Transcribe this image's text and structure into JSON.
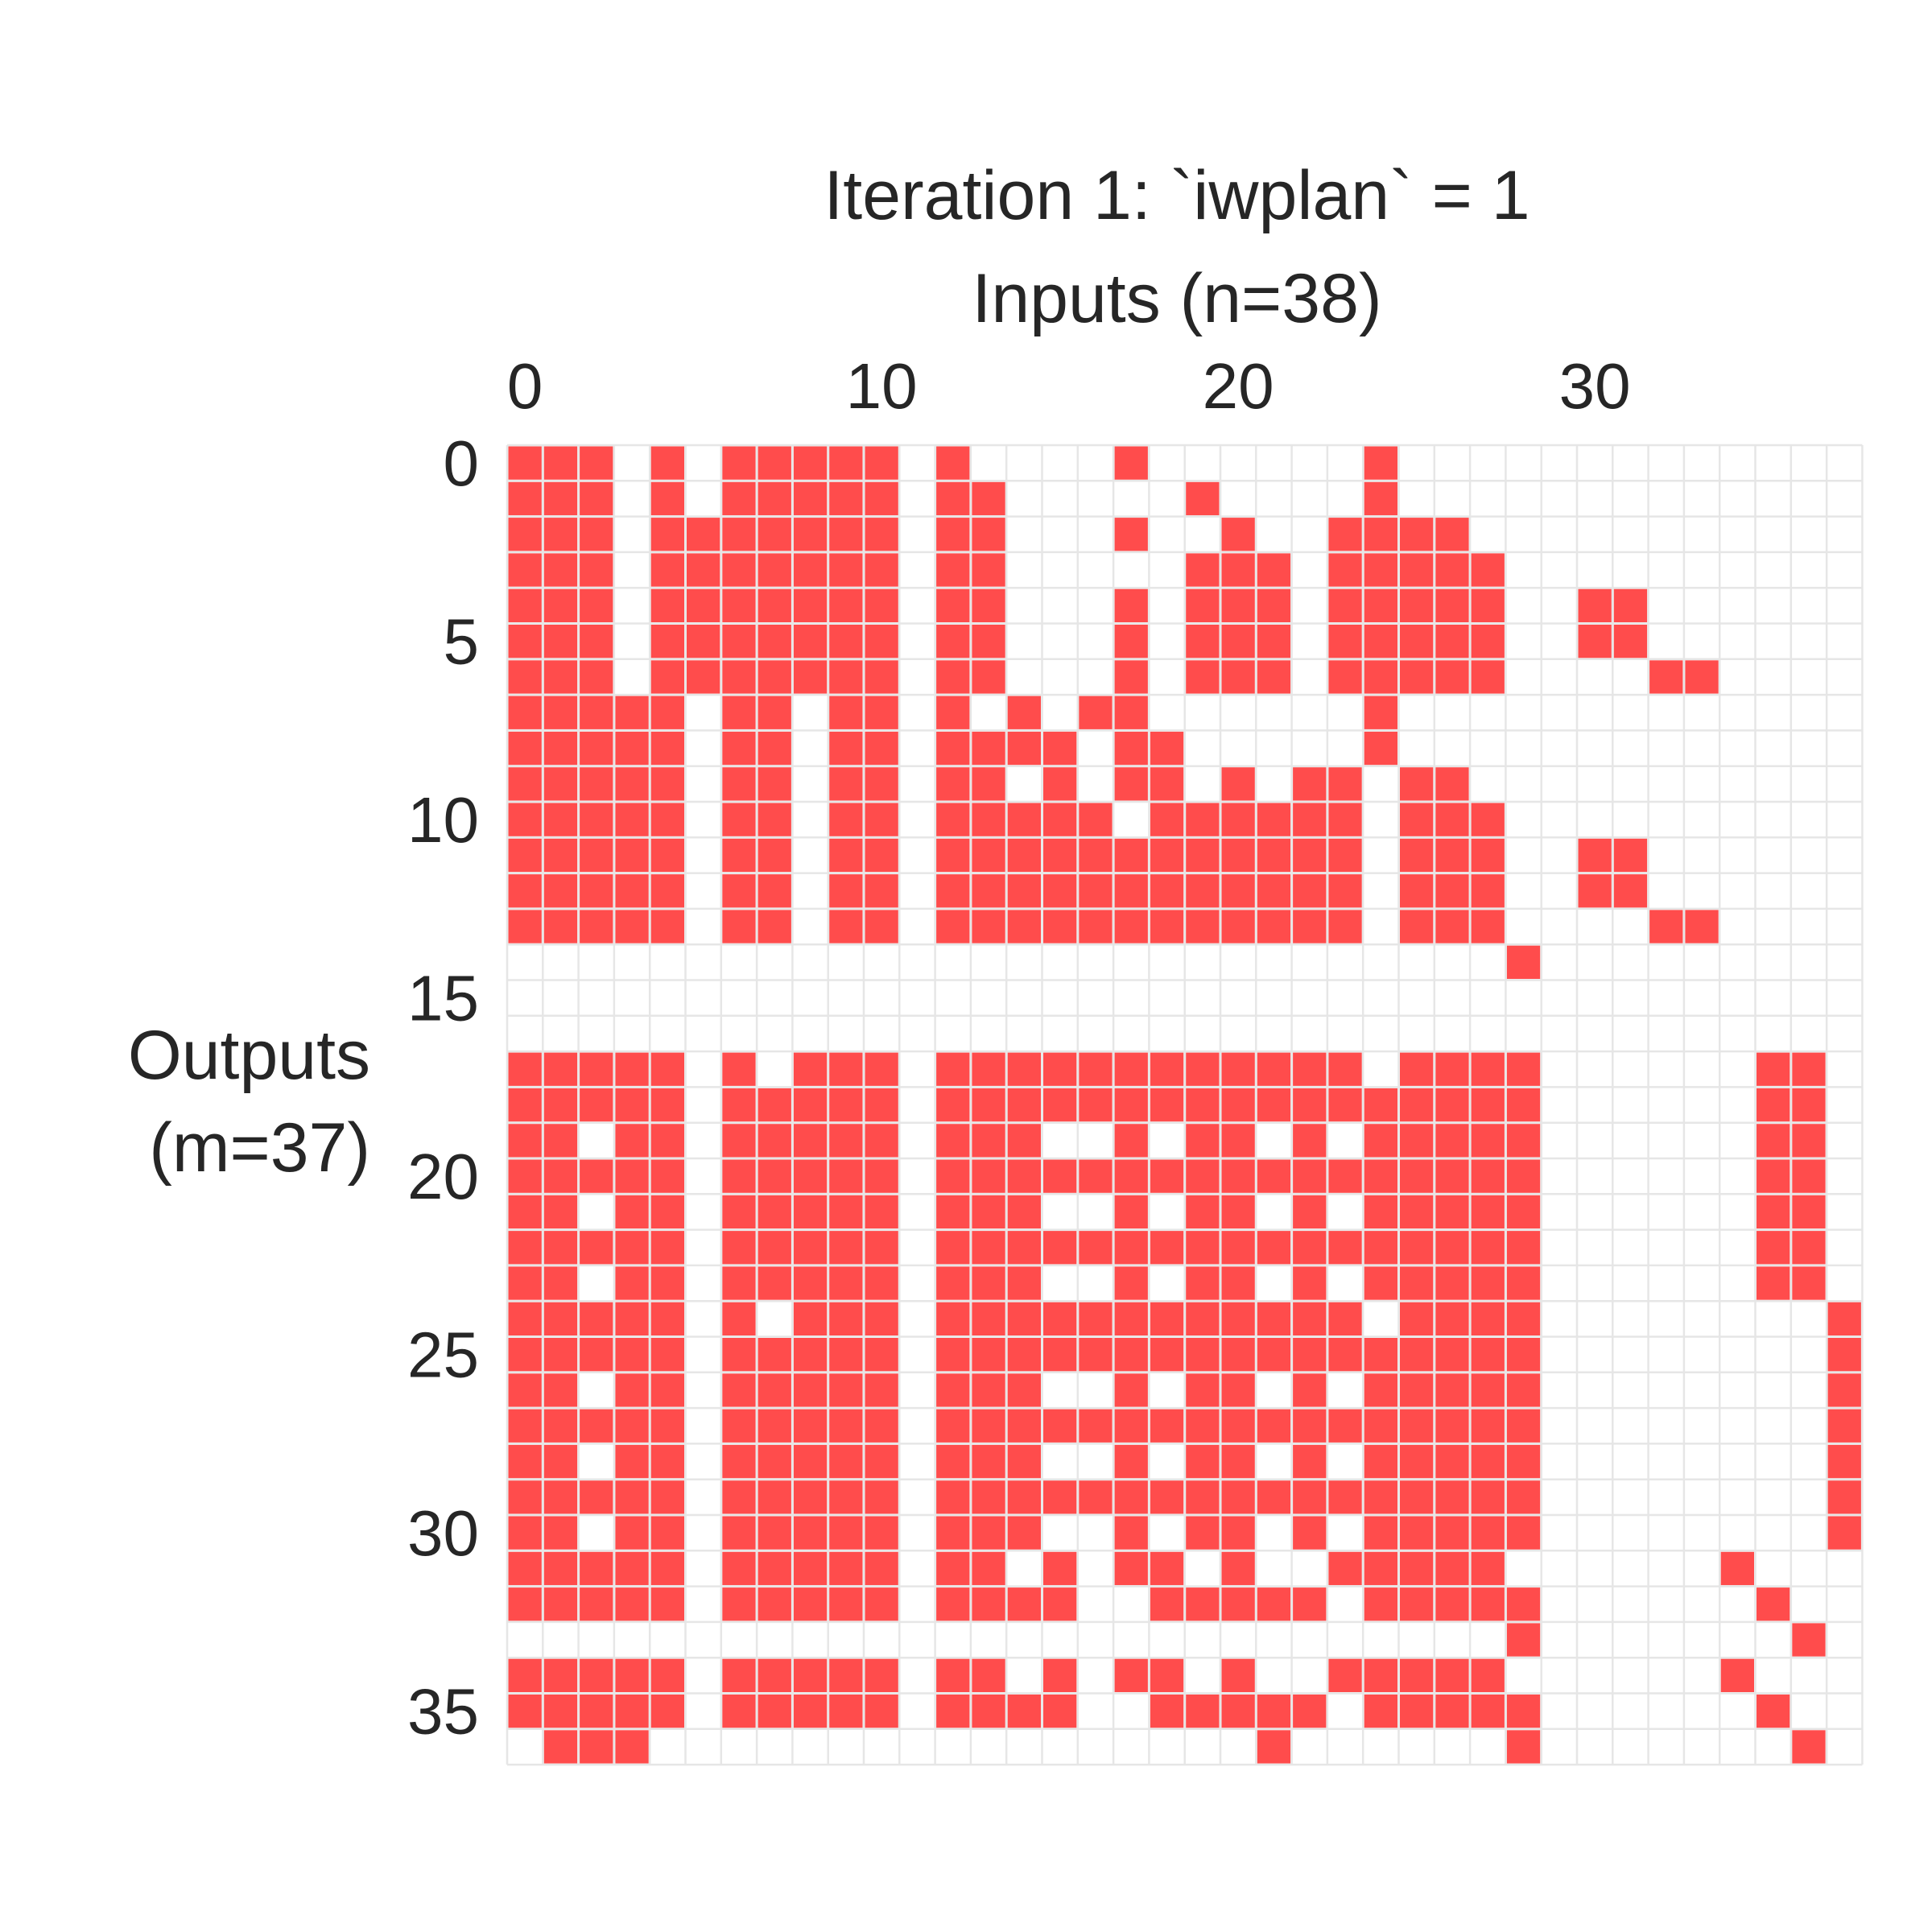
{
  "chart_data": {
    "type": "heatmap",
    "title": "Iteration 1: `iwplan` = 1",
    "xlabel": "Inputs (n=38)",
    "ylabel_line1": "Outputs",
    "ylabel_line2": "(m=37)",
    "x_ticks": [
      "0",
      "10",
      "20",
      "30"
    ],
    "y_ticks": [
      "0",
      "5",
      "10",
      "15",
      "20",
      "25",
      "30",
      "35"
    ],
    "n_cols": 38,
    "n_rows": 37,
    "fill_color": "#ff4c4c",
    "grid_color": "#e6e6e6",
    "grid": true,
    "x_axis_position": "top",
    "rows": [
      "11101011111010000100000010000000000000",
      "11101011111011000001000010000000000000",
      "11101111111011000100100111100000000000",
      "11101111111011000001110111110000000000",
      "11101111111011000101110111110011000000",
      "11101111111011000101110111110011000000",
      "11101111111011000101110111110000110000",
      "11111011011010101100000010000000000000",
      "11111011011011110110000010000000000000",
      "11111011011011010110101101100000000000",
      "11111011011011111011111101110000000000",
      "11111011011011111111111101110011000000",
      "11111011011011111111111101110011000000",
      "11111011011011111111111101110000110000",
      "00000000000000000000000000001000000000",
      "00000000000000000000000000000000000000",
      "00000000000000000000000000000000000000",
      "11111010111011111111111101111000000110",
      "11111011111011111111111111111000000110",
      "11011011111011100101101011111000000110",
      "11111011111011111111111111111000000110",
      "11011011111011100101101011111000000110",
      "11111011111011111111111111111000000110",
      "11011011111011100101101011111000000110",
      "11111010111011111111111101111000000001",
      "11111011111011111111111111111000000001",
      "11011011111011100101101011111000000001",
      "11111011111011111111111111111000000001",
      "11011011111011100101101011111000000001",
      "11111011111011111111111111111000000001",
      "11011011111011100101101011111000000001",
      "11111011111011010110100111110000001000",
      "11111011111011110011111011111000000100",
      "00000000000000000000000000001000000010",
      "11111011111011010110100111110000001000",
      "11111011111011110011111011111000000100",
      "01110000000000000000010000001000000010"
    ]
  }
}
